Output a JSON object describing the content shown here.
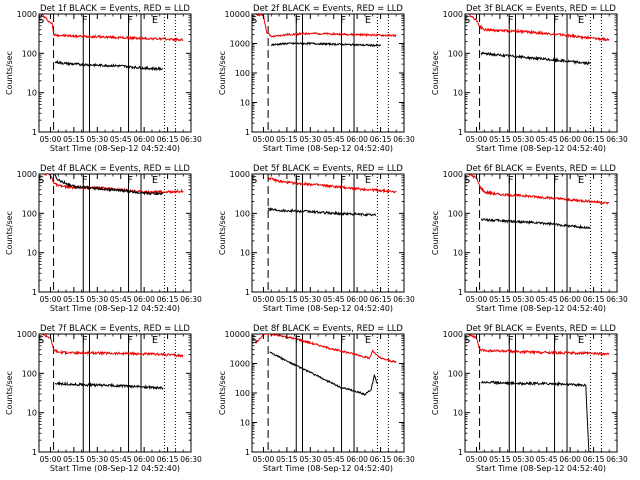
{
  "chart_data": {
    "type": "line",
    "common": {
      "xlabel": "Start Time (08-Sep-12 04:52:40)",
      "ylabel": "Counts/sec",
      "x_tick_labels": [
        "05:00",
        "05:15",
        "05:30",
        "05:45",
        "06:00",
        "06:15",
        "06:30"
      ],
      "x_range": [
        "04:52:40",
        "06:30:00"
      ],
      "y_scale": "log",
      "y_tick_labels": [
        "1",
        "10",
        "100",
        "1000",
        "10000"
      ],
      "grid": false,
      "series_colors": {
        "events": "#000000",
        "lld": "#ee0000"
      }
    },
    "panels": [
      {
        "title": "Det 1f BLACK = Events, RED = LLD",
        "ylim": [
          1,
          1000
        ],
        "y_tick_labels": [
          "1",
          "10",
          "100",
          "1000"
        ],
        "markers": {
          "dashed": "05:02",
          "solid": [
            "05:21",
            "05:25",
            "05:50",
            "05:58"
          ],
          "dotted": [
            "06:13",
            "06:20"
          ]
        },
        "marker_labels": [
          {
            "text": "S",
            "t": "04:54"
          },
          {
            "text": "F",
            "t": "05:22"
          },
          {
            "text": "F",
            "t": "05:51"
          },
          {
            "text": "E",
            "t": "06:07"
          }
        ],
        "series": [
          {
            "key": "lld",
            "x": [
              "04:54",
              "05:00",
              "05:01",
              "05:02",
              "05:05",
              "05:10",
              "05:20",
              "05:30",
              "05:45",
              "06:00",
              "06:15",
              "06:25"
            ],
            "y": [
              1000,
              600,
              600,
              300,
              290,
              280,
              270,
              265,
              250,
              240,
              230,
              220
            ]
          },
          {
            "key": "events",
            "x": [
              "05:03",
              "05:10",
              "05:20",
              "05:30",
              "05:45",
              "06:00",
              "06:12"
            ],
            "y": [
              60,
              55,
              52,
              50,
              48,
              42,
              40
            ]
          }
        ]
      },
      {
        "title": "Det 2f BLACK = Events, RED = LLD",
        "ylim": [
          1,
          10000
        ],
        "y_tick_labels": [
          "1",
          "10",
          "100",
          "1000",
          "10000"
        ],
        "markers": {
          "dashed": "05:03",
          "solid": [
            "05:21",
            "05:25",
            "05:50",
            "05:58"
          ],
          "dotted": [
            "06:13",
            "06:20"
          ]
        },
        "marker_labels": [
          {
            "text": "S",
            "t": "04:54"
          },
          {
            "text": "F",
            "t": "05:22"
          },
          {
            "text": "F",
            "t": "05:51"
          },
          {
            "text": "E",
            "t": "06:07"
          }
        ],
        "series": [
          {
            "key": "lld",
            "x": [
              "04:54",
              "05:00",
              "05:02",
              "05:05",
              "05:15",
              "05:30",
              "05:45",
              "06:00",
              "06:15",
              "06:25"
            ],
            "y": [
              10000,
              9000,
              2500,
              1700,
              2000,
              2200,
              2100,
              2000,
              1900,
              1850
            ]
          },
          {
            "key": "events",
            "x": [
              "05:05",
              "05:15",
              "05:30",
              "05:45",
              "06:00",
              "06:15"
            ],
            "y": [
              900,
              1000,
              1000,
              950,
              900,
              850
            ]
          }
        ]
      },
      {
        "title": "Det 3f BLACK = Events, RED = LLD",
        "ylim": [
          1,
          1000
        ],
        "y_tick_labels": [
          "1",
          "10",
          "100",
          "1000"
        ],
        "markers": {
          "dashed": "05:02",
          "solid": [
            "05:21",
            "05:25",
            "05:50",
            "05:58"
          ],
          "dotted": [
            "06:13",
            "06:20"
          ]
        },
        "marker_labels": [
          {
            "text": "S",
            "t": "04:54"
          },
          {
            "text": "F",
            "t": "05:22"
          },
          {
            "text": "F",
            "t": "05:51"
          },
          {
            "text": "E",
            "t": "06:07"
          }
        ],
        "series": [
          {
            "key": "lld",
            "x": [
              "04:55",
              "05:00",
              "05:02",
              "05:05",
              "05:15",
              "05:30",
              "05:45",
              "06:00",
              "06:15",
              "06:25"
            ],
            "y": [
              1000,
              700,
              500,
              400,
              380,
              360,
              320,
              280,
              240,
              220
            ]
          },
          {
            "key": "events",
            "x": [
              "05:03",
              "05:15",
              "05:30",
              "05:45",
              "06:00",
              "06:13"
            ],
            "y": [
              100,
              90,
              80,
              70,
              62,
              55
            ]
          }
        ]
      },
      {
        "title": "Det 4f BLACK = Events, RED = LLD",
        "ylim": [
          1,
          1000
        ],
        "y_tick_labels": [
          "1",
          "10",
          "100",
          "1000"
        ],
        "markers": {
          "dashed": "05:02",
          "solid": [
            "05:21",
            "05:25",
            "05:50",
            "05:58"
          ],
          "dotted": [
            "06:13",
            "06:20"
          ]
        },
        "marker_labels": [
          {
            "text": "S",
            "t": "04:54"
          },
          {
            "text": "F",
            "t": "05:22"
          },
          {
            "text": "F",
            "t": "05:51"
          },
          {
            "text": "E",
            "t": "06:07"
          }
        ],
        "series": [
          {
            "key": "lld",
            "x": [
              "04:56",
              "04:59",
              "05:01",
              "05:02",
              "05:05",
              "05:15",
              "05:30",
              "05:45",
              "06:00",
              "06:15",
              "06:25"
            ],
            "y": [
              1000,
              1000,
              800,
              600,
              500,
              450,
              450,
              400,
              350,
              350,
              370
            ]
          },
          {
            "key": "events",
            "x": [
              "05:02",
              "05:05",
              "05:15",
              "05:30",
              "05:45",
              "06:00",
              "06:12"
            ],
            "y": [
              1000,
              700,
              480,
              430,
              380,
              330,
              310
            ]
          }
        ]
      },
      {
        "title": "Det 5f BLACK = Events, RED = LLD",
        "ylim": [
          1,
          1000
        ],
        "y_tick_labels": [
          "1",
          "10",
          "100",
          "1000"
        ],
        "markers": {
          "dashed": "05:03",
          "solid": [
            "05:21",
            "05:25",
            "05:50",
            "05:58"
          ],
          "dotted": [
            "06:13",
            "06:20"
          ]
        },
        "marker_labels": [
          {
            "text": "S",
            "t": "04:54"
          },
          {
            "text": "F",
            "t": "05:22"
          },
          {
            "text": "F",
            "t": "05:51"
          },
          {
            "text": "E",
            "t": "06:07"
          }
        ],
        "series": [
          {
            "key": "lld",
            "x": [
              "05:03",
              "05:10",
              "05:20",
              "05:30",
              "05:45",
              "06:00",
              "06:15",
              "06:25"
            ],
            "y": [
              800,
              650,
              580,
              550,
              480,
              420,
              380,
              350
            ]
          },
          {
            "key": "events",
            "x": [
              "05:03",
              "05:10",
              "05:20",
              "05:30",
              "05:45",
              "06:00",
              "06:12"
            ],
            "y": [
              130,
              120,
              115,
              110,
              100,
              95,
              90
            ]
          }
        ]
      },
      {
        "title": "Det 6f BLACK = Events, RED = LLD",
        "ylim": [
          1,
          1000
        ],
        "y_tick_labels": [
          "1",
          "10",
          "100",
          "1000"
        ],
        "markers": {
          "dashed": "05:02",
          "solid": [
            "05:21",
            "05:25",
            "05:50",
            "05:58"
          ],
          "dotted": [
            "06:13",
            "06:20"
          ]
        },
        "marker_labels": [
          {
            "text": "S",
            "t": "04:54"
          },
          {
            "text": "F",
            "t": "05:22"
          },
          {
            "text": "F",
            "t": "05:51"
          },
          {
            "text": "E",
            "t": "06:07"
          }
        ],
        "series": [
          {
            "key": "lld",
            "x": [
              "04:55",
              "05:00",
              "05:02",
              "05:05",
              "05:15",
              "05:30",
              "05:45",
              "06:00",
              "06:15",
              "06:25"
            ],
            "y": [
              1000,
              800,
              500,
              350,
              300,
              280,
              250,
              220,
              200,
              180
            ]
          },
          {
            "key": "events",
            "x": [
              "05:03",
              "05:15",
              "05:30",
              "05:45",
              "06:00",
              "06:13"
            ],
            "y": [
              70,
              65,
              60,
              55,
              48,
              42
            ]
          }
        ]
      },
      {
        "title": "Det 7f BLACK = Events, RED = LLD",
        "ylim": [
          1,
          1000
        ],
        "y_tick_labels": [
          "1",
          "10",
          "100",
          "1000"
        ],
        "markers": {
          "dashed": "05:02",
          "solid": [
            "05:21",
            "05:25",
            "05:50",
            "05:58"
          ],
          "dotted": [
            "06:13",
            "06:20"
          ]
        },
        "marker_labels": [
          {
            "text": "S",
            "t": "04:54"
          },
          {
            "text": "F",
            "t": "05:22"
          },
          {
            "text": "F",
            "t": "05:51"
          },
          {
            "text": "E",
            "t": "06:07"
          }
        ],
        "series": [
          {
            "key": "lld",
            "x": [
              "04:55",
              "05:00",
              "05:02",
              "05:05",
              "05:15",
              "05:30",
              "05:45",
              "06:00",
              "06:15",
              "06:25"
            ],
            "y": [
              1000,
              800,
              400,
              350,
              330,
              330,
              320,
              310,
              300,
              280
            ]
          },
          {
            "key": "events",
            "x": [
              "05:03",
              "05:15",
              "05:30",
              "05:45",
              "06:00",
              "06:12"
            ],
            "y": [
              55,
              52,
              50,
              48,
              45,
              42
            ]
          }
        ]
      },
      {
        "title": "Det 8f BLACK = Events, RED = LLD",
        "ylim": [
          1,
          10000
        ],
        "y_tick_labels": [
          "1",
          "10",
          "100",
          "1000",
          "10000"
        ],
        "markers": {
          "dashed": "05:03",
          "solid": [
            "05:21",
            "05:25",
            "05:50",
            "05:58"
          ],
          "dotted": [
            "06:13",
            "06:20"
          ]
        },
        "marker_labels": [
          {
            "text": "S",
            "t": "04:54"
          },
          {
            "text": "F",
            "t": "05:22"
          },
          {
            "text": "F",
            "t": "05:51"
          },
          {
            "text": "E",
            "t": "06:07"
          }
        ],
        "series": [
          {
            "key": "lld",
            "x": [
              "04:55",
              "04:58",
              "05:00",
              "05:03",
              "05:10",
              "05:20",
              "05:30",
              "05:45",
              "06:00",
              "06:08",
              "06:10",
              "06:12",
              "06:15",
              "06:25"
            ],
            "y": [
              5000,
              7000,
              10000,
              10000,
              9000,
              7000,
              5000,
              3000,
              2000,
              1500,
              2800,
              2000,
              1500,
              1100
            ]
          },
          {
            "key": "events",
            "x": [
              "05:04",
              "05:15",
              "05:30",
              "05:45",
              "05:50",
              "05:55",
              "06:00",
              "06:05",
              "06:09",
              "06:11",
              "06:13"
            ],
            "y": [
              2500,
              1200,
              500,
              200,
              150,
              130,
              110,
              90,
              130,
              400,
              200
            ]
          }
        ]
      },
      {
        "title": "Det 9f BLACK = Events, RED = LLD",
        "ylim": [
          1,
          1000
        ],
        "y_tick_labels": [
          "1",
          "10",
          "100",
          "1000"
        ],
        "markers": {
          "dashed": "05:02",
          "solid": [
            "05:21",
            "05:25",
            "05:50",
            "05:58"
          ],
          "dotted": [
            "06:13",
            "06:20"
          ]
        },
        "marker_labels": [
          {
            "text": "S",
            "t": "04:54"
          },
          {
            "text": "F",
            "t": "05:22"
          },
          {
            "text": "F",
            "t": "05:51"
          },
          {
            "text": "E",
            "t": "06:07"
          }
        ],
        "series": [
          {
            "key": "lld",
            "x": [
              "04:55",
              "05:00",
              "05:02",
              "05:05",
              "05:15",
              "05:30",
              "05:45",
              "06:00",
              "06:15",
              "06:25"
            ],
            "y": [
              1000,
              800,
              400,
              380,
              370,
              350,
              340,
              330,
              320,
              310
            ]
          },
          {
            "key": "events",
            "x": [
              "05:03",
              "05:15",
              "05:30",
              "05:45",
              "06:00",
              "06:10",
              "06:12"
            ],
            "y": [
              60,
              58,
              55,
              55,
              52,
              50,
              1
            ]
          }
        ]
      }
    ]
  }
}
